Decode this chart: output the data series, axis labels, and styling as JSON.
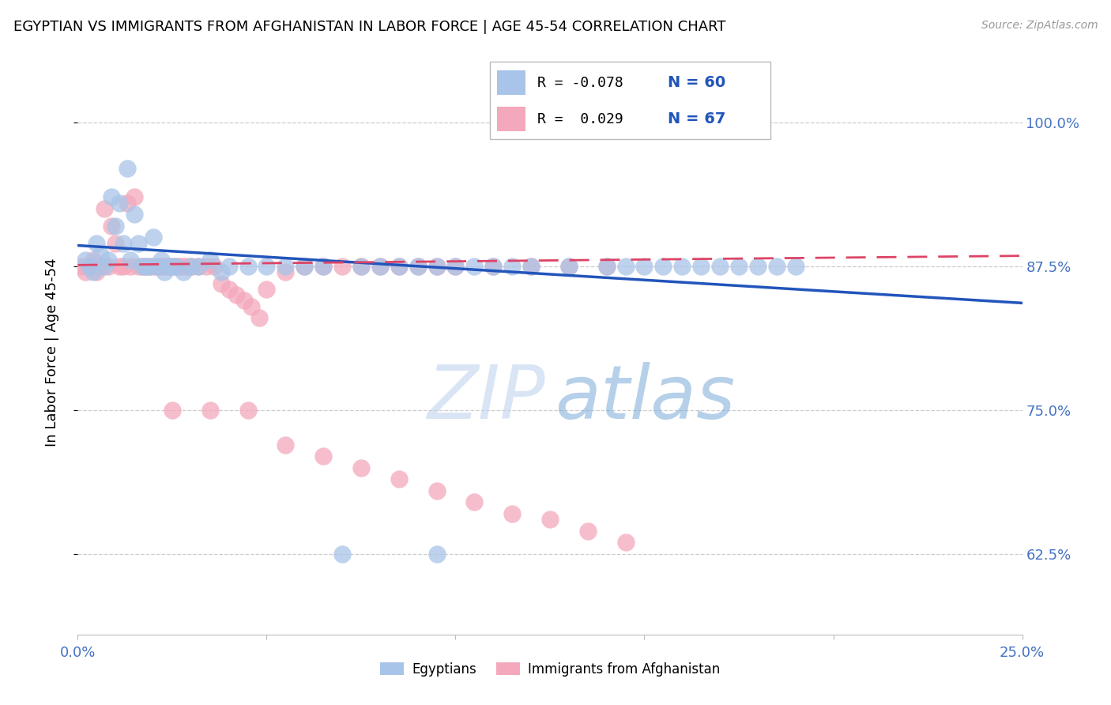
{
  "title": "EGYPTIAN VS IMMIGRANTS FROM AFGHANISTAN IN LABOR FORCE | AGE 45-54 CORRELATION CHART",
  "source": "Source: ZipAtlas.com",
  "ylabel": "In Labor Force | Age 45-54",
  "ytick_labels": [
    "62.5%",
    "75.0%",
    "87.5%",
    "100.0%"
  ],
  "ytick_values": [
    0.625,
    0.75,
    0.875,
    1.0
  ],
  "xlim": [
    0.0,
    0.25
  ],
  "ylim": [
    0.555,
    1.045
  ],
  "blue_color": "#a8c4e8",
  "pink_color": "#f4a8bc",
  "blue_line_color": "#2255bb",
  "pink_line_color": "#dd4466",
  "blue_line_y0": 0.893,
  "blue_line_y1": 0.843,
  "pink_line_y0": 0.876,
  "pink_line_y1": 0.884,
  "blue_points_x": [
    0.002,
    0.003,
    0.004,
    0.005,
    0.006,
    0.007,
    0.008,
    0.009,
    0.01,
    0.011,
    0.012,
    0.013,
    0.014,
    0.015,
    0.016,
    0.017,
    0.018,
    0.019,
    0.02,
    0.021,
    0.022,
    0.023,
    0.024,
    0.025,
    0.026,
    0.028,
    0.03,
    0.032,
    0.035,
    0.038,
    0.04,
    0.045,
    0.05,
    0.055,
    0.06,
    0.065,
    0.07,
    0.08,
    0.09,
    0.1,
    0.11,
    0.12,
    0.13,
    0.14,
    0.15,
    0.16,
    0.165,
    0.175,
    0.18,
    0.19,
    0.075,
    0.085,
    0.095,
    0.105,
    0.115,
    0.145,
    0.155,
    0.17,
    0.185,
    0.095
  ],
  "blue_points_y": [
    0.88,
    0.875,
    0.87,
    0.895,
    0.885,
    0.875,
    0.88,
    0.935,
    0.91,
    0.93,
    0.895,
    0.96,
    0.88,
    0.92,
    0.895,
    0.875,
    0.875,
    0.875,
    0.9,
    0.875,
    0.88,
    0.87,
    0.875,
    0.875,
    0.875,
    0.87,
    0.875,
    0.875,
    0.88,
    0.87,
    0.875,
    0.875,
    0.875,
    0.875,
    0.875,
    0.875,
    0.625,
    0.875,
    0.875,
    0.875,
    0.875,
    0.875,
    0.875,
    0.875,
    0.875,
    0.875,
    0.875,
    0.875,
    0.875,
    0.875,
    0.875,
    0.875,
    0.875,
    0.875,
    0.875,
    0.875,
    0.875,
    0.875,
    0.875,
    0.625
  ],
  "pink_points_x": [
    0.001,
    0.002,
    0.003,
    0.004,
    0.005,
    0.006,
    0.007,
    0.008,
    0.009,
    0.01,
    0.011,
    0.012,
    0.013,
    0.014,
    0.015,
    0.016,
    0.017,
    0.018,
    0.019,
    0.02,
    0.021,
    0.022,
    0.023,
    0.024,
    0.025,
    0.026,
    0.027,
    0.028,
    0.029,
    0.03,
    0.032,
    0.034,
    0.036,
    0.038,
    0.04,
    0.042,
    0.044,
    0.046,
    0.048,
    0.05,
    0.055,
    0.06,
    0.065,
    0.07,
    0.075,
    0.08,
    0.085,
    0.09,
    0.095,
    0.1,
    0.11,
    0.12,
    0.13,
    0.14,
    0.025,
    0.035,
    0.045,
    0.055,
    0.065,
    0.075,
    0.085,
    0.095,
    0.105,
    0.115,
    0.125,
    0.135,
    0.145
  ],
  "pink_points_y": [
    0.875,
    0.87,
    0.875,
    0.88,
    0.87,
    0.875,
    0.925,
    0.875,
    0.91,
    0.895,
    0.875,
    0.875,
    0.93,
    0.875,
    0.935,
    0.875,
    0.875,
    0.875,
    0.875,
    0.875,
    0.875,
    0.875,
    0.875,
    0.875,
    0.875,
    0.875,
    0.875,
    0.875,
    0.875,
    0.875,
    0.875,
    0.875,
    0.875,
    0.86,
    0.855,
    0.85,
    0.845,
    0.84,
    0.83,
    0.855,
    0.87,
    0.875,
    0.875,
    0.875,
    0.875,
    0.875,
    0.875,
    0.875,
    0.875,
    0.875,
    0.875,
    0.875,
    0.875,
    0.875,
    0.75,
    0.75,
    0.75,
    0.72,
    0.71,
    0.7,
    0.69,
    0.68,
    0.67,
    0.66,
    0.655,
    0.645,
    0.635
  ]
}
